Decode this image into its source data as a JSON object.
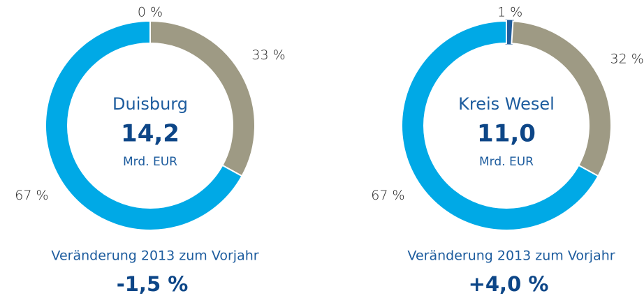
{
  "chart_data": [
    {
      "type": "pie",
      "donut": true,
      "values": [
        0,
        33,
        67
      ],
      "value_labels": [
        "0 %",
        "33 %",
        "67 %"
      ],
      "colors": [
        "#1f5d9c",
        "#9e9a84",
        "#00a9e6"
      ],
      "center_title": "Duisburg",
      "center_value": "14,2",
      "center_unit": "Mrd. EUR",
      "footer_label": "Veränderung 2013 zum Vorjahr",
      "footer_value": "-1,5 %"
    },
    {
      "type": "pie",
      "donut": true,
      "values": [
        1,
        32,
        67
      ],
      "value_labels": [
        "1 %",
        "32 %",
        "67 %"
      ],
      "colors": [
        "#1f5d9c",
        "#9e9a84",
        "#00a9e6"
      ],
      "center_title": "Kreis Wesel",
      "center_value": "11,0",
      "center_unit": "Mrd. EUR",
      "footer_label": "Veränderung 2013 zum Vorjahr",
      "footer_value": "+4,0 %"
    }
  ]
}
